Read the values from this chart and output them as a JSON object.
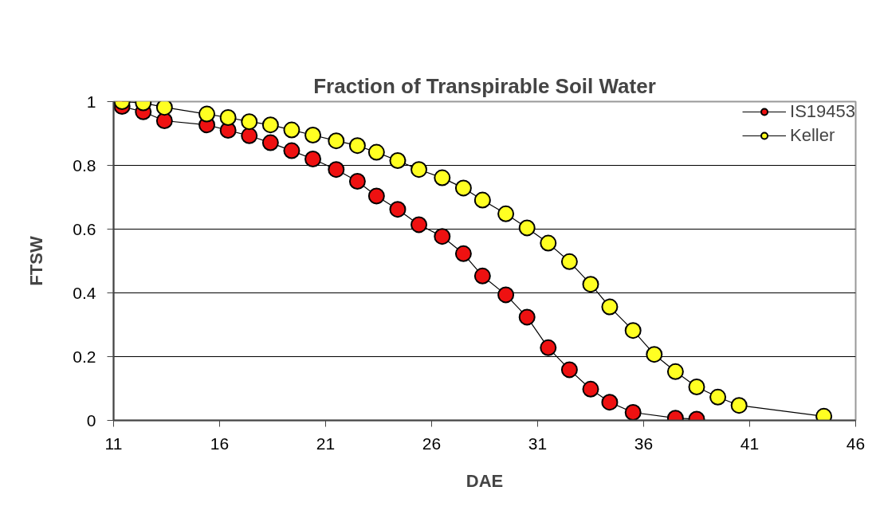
{
  "chart_data": {
    "type": "line",
    "title": "Fraction of Transpirable Soil Water",
    "xlabel": "DAE",
    "ylabel": "FTSW",
    "xlim": [
      11,
      46
    ],
    "xticks": [
      11,
      16,
      21,
      26,
      31,
      36,
      41,
      46
    ],
    "ylim": [
      0,
      1
    ],
    "yticks": [
      0,
      0.2,
      0.4,
      0.6,
      0.8,
      1
    ],
    "grid": "y",
    "legend": "top right",
    "marker": "circle",
    "line_style": "solid",
    "series": [
      {
        "name": "IS19453",
        "color": "#ee1111",
        "x": [
          11.4,
          12.4,
          13.4,
          15.4,
          16.4,
          17.4,
          18.4,
          19.4,
          20.4,
          21.5,
          22.5,
          23.4,
          24.4,
          25.4,
          26.5,
          27.5,
          28.4,
          29.5,
          30.5,
          31.5,
          32.5,
          33.5,
          34.4,
          35.5,
          37.5,
          38.5
        ],
        "values": [
          0.985,
          0.968,
          0.94,
          0.927,
          0.91,
          0.893,
          0.871,
          0.846,
          0.82,
          0.787,
          0.75,
          0.704,
          0.662,
          0.614,
          0.577,
          0.523,
          0.453,
          0.394,
          0.324,
          0.228,
          0.159,
          0.098,
          0.057,
          0.025,
          0.007,
          0.004
        ]
      },
      {
        "name": "Keller",
        "color": "#ffff22",
        "x": [
          11.4,
          12.4,
          13.4,
          15.4,
          16.4,
          17.4,
          18.4,
          19.4,
          20.4,
          21.5,
          22.5,
          23.4,
          24.4,
          25.4,
          26.5,
          27.5,
          28.4,
          29.5,
          30.5,
          31.5,
          32.5,
          33.5,
          34.4,
          35.5,
          36.5,
          37.5,
          38.5,
          39.5,
          40.5,
          44.5
        ],
        "values": [
          1.0,
          0.996,
          0.982,
          0.961,
          0.95,
          0.937,
          0.927,
          0.911,
          0.895,
          0.877,
          0.862,
          0.841,
          0.815,
          0.787,
          0.761,
          0.729,
          0.691,
          0.648,
          0.604,
          0.556,
          0.498,
          0.427,
          0.356,
          0.282,
          0.207,
          0.153,
          0.105,
          0.073,
          0.047,
          0.013
        ]
      }
    ]
  }
}
